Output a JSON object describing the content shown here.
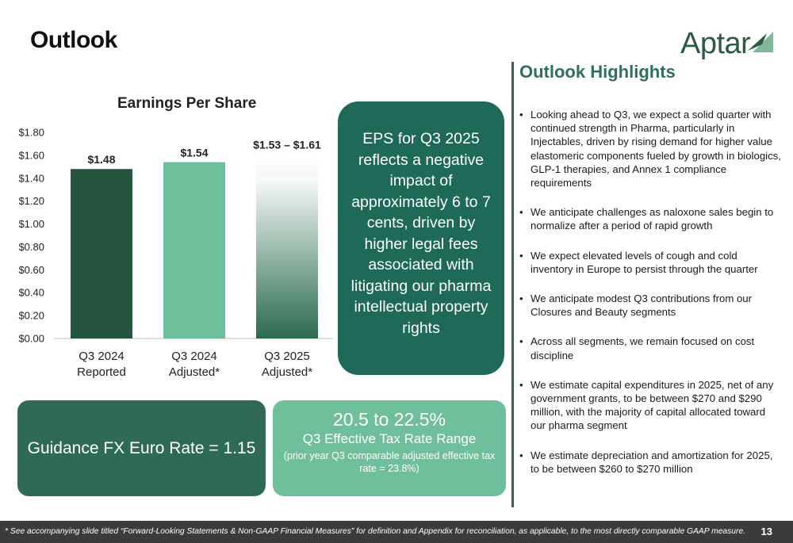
{
  "header": {
    "title": "Outlook",
    "logo_text": "Aptar"
  },
  "chart_data": {
    "type": "bar",
    "title": "Earnings Per Share",
    "categories": [
      "Q3 2024 Reported",
      "Q3 2024 Adjusted*",
      "Q3 2025 Adjusted*"
    ],
    "category_lines": [
      [
        "Q3 2024",
        "Reported"
      ],
      [
        "Q3 2024",
        "Adjusted*"
      ],
      [
        "Q3 2025",
        "Adjusted*"
      ]
    ],
    "values": [
      1.48,
      1.54,
      1.61
    ],
    "range_low": [
      null,
      null,
      1.53
    ],
    "data_labels": [
      "$1.48",
      "$1.54",
      "$1.53 – $1.61"
    ],
    "ylim": [
      0,
      1.8
    ],
    "yticks": [
      0,
      0.2,
      0.4,
      0.6,
      0.8,
      1.0,
      1.2,
      1.4,
      1.6,
      1.8
    ],
    "ytick_labels": [
      "$0.00",
      "$0.20",
      "$0.40",
      "$0.60",
      "$0.80",
      "$1.00",
      "$1.20",
      "$1.40",
      "$1.60",
      "$1.80"
    ],
    "grid": false,
    "colors": [
      "#25543f",
      "#6fbe9c",
      "gradient-white-to-#2a6a4e"
    ]
  },
  "eps_callout": {
    "text": "EPS for Q3 2025 reflects a negative impact of approximately 6 to 7 cents, driven by higher legal fees associated with litigating our pharma intellectual property rights"
  },
  "fx_box": {
    "text": "Guidance FX Euro Rate = 1.15"
  },
  "tax_box": {
    "range": "20.5 to 22.5%",
    "label": "Q3 Effective Tax Rate Range",
    "note": "(prior year Q3 comparable adjusted effective tax rate = 23.8%)"
  },
  "highlights": {
    "title": "Outlook Highlights",
    "items": [
      "Looking ahead to Q3, we expect a solid quarter with continued strength in Pharma, particularly in Injectables, driven by rising demand for higher value elastomeric components fueled by growth in biologics, GLP-1 therapies, and Annex 1 compliance requirements",
      "We anticipate challenges as naloxone sales begin to normalize after a period of rapid growth",
      "We expect elevated levels of cough and cold inventory in Europe to persist through the quarter",
      "We anticipate modest Q3 contributions from our Closures and Beauty segments",
      "Across all segments, we remain focused on cost discipline",
      "We estimate capital expenditures in 2025, net of any government grants, to be between $270 and $290 million, with the majority of capital allocated toward our pharma segment",
      "We estimate depreciation and amortization for 2025, to be between $260 to $270 million"
    ]
  },
  "footer": {
    "footnote": "* See accompanying slide titled “Forward-Looking Statements & Non-GAAP Financial Measures” for definition and Appendix for reconciliation, as applicable, to the most directly comparable GAAP measure.",
    "page_number": "13"
  }
}
